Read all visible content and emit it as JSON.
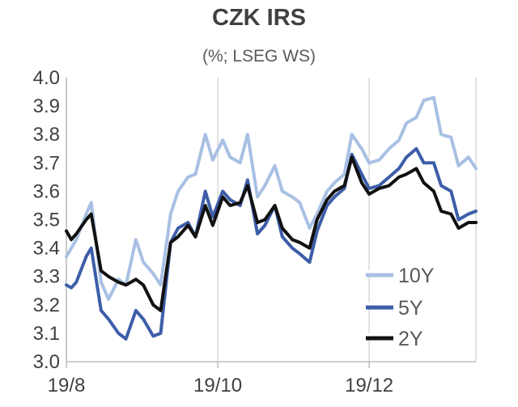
{
  "chart_data": {
    "type": "line",
    "title": "CZK IRS",
    "subtitle": "(%; LSEG WS)",
    "xlabel": "",
    "ylabel": "",
    "x_tick_labels": [
      "19/8",
      "19/10",
      "19/12"
    ],
    "x_range": [
      "2024-08-19",
      "2025-01-31"
    ],
    "x_ticks": [
      "2024-08-19",
      "2024-10-19",
      "2024-12-19"
    ],
    "ylim": [
      3.0,
      4.0
    ],
    "y_ticks": [
      3.0,
      3.1,
      3.2,
      3.3,
      3.4,
      3.5,
      3.6,
      3.7,
      3.8,
      3.9,
      4.0
    ],
    "y_tick_labels": [
      "3.0",
      "3.1",
      "3.2",
      "3.3",
      "3.4",
      "3.5",
      "3.6",
      "3.7",
      "3.8",
      "3.9",
      "4.0"
    ],
    "grid": "vertical",
    "legend_position": "bottom-right",
    "series": [
      {
        "name": "10Y",
        "color": "#a9c0e4",
        "x": [
          "2024-08-19",
          "2024-08-21",
          "2024-08-23",
          "2024-08-27",
          "2024-08-29",
          "2024-09-02",
          "2024-09-05",
          "2024-09-09",
          "2024-09-12",
          "2024-09-16",
          "2024-09-19",
          "2024-09-23",
          "2024-09-26",
          "2024-09-30",
          "2024-10-03",
          "2024-10-07",
          "2024-10-10",
          "2024-10-14",
          "2024-10-17",
          "2024-10-21",
          "2024-10-24",
          "2024-10-28",
          "2024-10-31",
          "2024-11-04",
          "2024-11-07",
          "2024-11-11",
          "2024-11-14",
          "2024-11-18",
          "2024-11-21",
          "2024-11-25",
          "2024-11-28",
          "2024-12-02",
          "2024-12-05",
          "2024-12-09",
          "2024-12-12",
          "2024-12-16",
          "2024-12-19",
          "2024-12-23",
          "2024-12-27",
          "2024-12-31",
          "2025-01-03",
          "2025-01-07",
          "2025-01-10",
          "2025-01-14",
          "2025-01-17",
          "2025-01-21",
          "2025-01-24",
          "2025-01-28",
          "2025-01-31"
        ],
        "values": [
          3.37,
          3.4,
          3.43,
          3.52,
          3.56,
          3.28,
          3.22,
          3.29,
          3.27,
          3.43,
          3.35,
          3.31,
          3.27,
          3.52,
          3.6,
          3.65,
          3.66,
          3.8,
          3.71,
          3.78,
          3.72,
          3.7,
          3.8,
          3.58,
          3.62,
          3.69,
          3.6,
          3.58,
          3.56,
          3.47,
          3.52,
          3.6,
          3.63,
          3.66,
          3.8,
          3.75,
          3.7,
          3.71,
          3.75,
          3.78,
          3.84,
          3.86,
          3.92,
          3.93,
          3.8,
          3.79,
          3.69,
          3.72,
          3.68
        ]
      },
      {
        "name": "5Y",
        "color": "#3d5ea8",
        "x": [
          "2024-08-19",
          "2024-08-21",
          "2024-08-23",
          "2024-08-27",
          "2024-08-29",
          "2024-09-02",
          "2024-09-05",
          "2024-09-09",
          "2024-09-12",
          "2024-09-16",
          "2024-09-19",
          "2024-09-23",
          "2024-09-26",
          "2024-09-30",
          "2024-10-03",
          "2024-10-07",
          "2024-10-10",
          "2024-10-14",
          "2024-10-17",
          "2024-10-21",
          "2024-10-24",
          "2024-10-28",
          "2024-10-31",
          "2024-11-04",
          "2024-11-07",
          "2024-11-11",
          "2024-11-14",
          "2024-11-18",
          "2024-11-21",
          "2024-11-25",
          "2024-11-28",
          "2024-12-02",
          "2024-12-05",
          "2024-12-09",
          "2024-12-12",
          "2024-12-16",
          "2024-12-19",
          "2024-12-23",
          "2024-12-27",
          "2024-12-31",
          "2025-01-03",
          "2025-01-07",
          "2025-01-10",
          "2025-01-14",
          "2025-01-17",
          "2025-01-21",
          "2025-01-24",
          "2025-01-28",
          "2025-01-31"
        ],
        "values": [
          3.27,
          3.26,
          3.28,
          3.37,
          3.4,
          3.18,
          3.15,
          3.1,
          3.08,
          3.18,
          3.15,
          3.09,
          3.1,
          3.42,
          3.47,
          3.49,
          3.44,
          3.6,
          3.51,
          3.6,
          3.57,
          3.55,
          3.64,
          3.45,
          3.48,
          3.55,
          3.44,
          3.4,
          3.38,
          3.35,
          3.46,
          3.55,
          3.58,
          3.61,
          3.73,
          3.66,
          3.61,
          3.62,
          3.65,
          3.68,
          3.72,
          3.75,
          3.7,
          3.7,
          3.62,
          3.6,
          3.5,
          3.52,
          3.53
        ]
      },
      {
        "name": "2Y",
        "color": "#111111",
        "x": [
          "2024-08-19",
          "2024-08-21",
          "2024-08-23",
          "2024-08-27",
          "2024-08-29",
          "2024-09-02",
          "2024-09-05",
          "2024-09-09",
          "2024-09-12",
          "2024-09-16",
          "2024-09-19",
          "2024-09-23",
          "2024-09-26",
          "2024-09-30",
          "2024-10-03",
          "2024-10-07",
          "2024-10-10",
          "2024-10-14",
          "2024-10-17",
          "2024-10-21",
          "2024-10-24",
          "2024-10-28",
          "2024-10-31",
          "2024-11-04",
          "2024-11-07",
          "2024-11-11",
          "2024-11-14",
          "2024-11-18",
          "2024-11-21",
          "2024-11-25",
          "2024-11-28",
          "2024-12-02",
          "2024-12-05",
          "2024-12-09",
          "2024-12-12",
          "2024-12-16",
          "2024-12-19",
          "2024-12-23",
          "2024-12-27",
          "2024-12-31",
          "2025-01-03",
          "2025-01-07",
          "2025-01-10",
          "2025-01-14",
          "2025-01-17",
          "2025-01-21",
          "2025-01-24",
          "2025-01-28",
          "2025-01-31"
        ],
        "values": [
          3.46,
          3.43,
          3.45,
          3.5,
          3.52,
          3.32,
          3.3,
          3.28,
          3.27,
          3.29,
          3.27,
          3.2,
          3.18,
          3.42,
          3.44,
          3.48,
          3.44,
          3.55,
          3.48,
          3.58,
          3.55,
          3.56,
          3.62,
          3.49,
          3.5,
          3.55,
          3.47,
          3.43,
          3.42,
          3.4,
          3.5,
          3.57,
          3.6,
          3.62,
          3.72,
          3.63,
          3.59,
          3.61,
          3.62,
          3.65,
          3.66,
          3.68,
          3.63,
          3.6,
          3.53,
          3.52,
          3.47,
          3.49,
          3.49
        ]
      }
    ]
  }
}
